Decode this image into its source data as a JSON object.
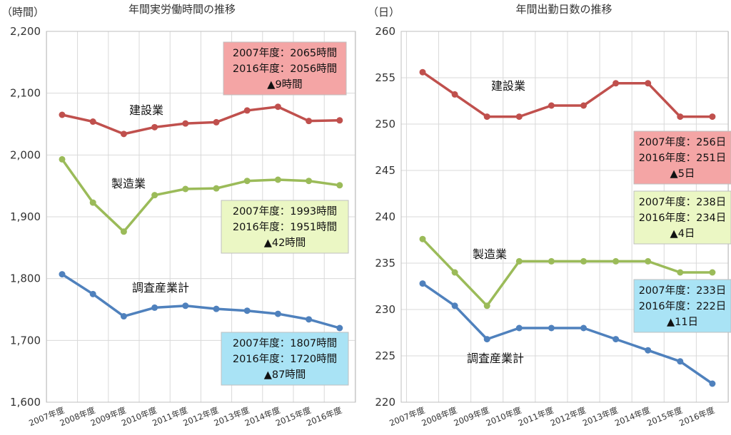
{
  "chart_data": [
    {
      "type": "line",
      "title": "年間実労働時間の推移",
      "unit": "（時間）",
      "ylim": [
        1600,
        2200
      ],
      "yticks": [
        1600,
        1700,
        1800,
        1900,
        2000,
        2100,
        2200
      ],
      "ytick_labels": [
        "1,600",
        "1,700",
        "1,800",
        "1,900",
        "2,000",
        "2,100",
        "2,200"
      ],
      "categories": [
        "2007年度",
        "2008年度",
        "2009年度",
        "2010年度",
        "2011年度",
        "2012年度",
        "2013年度",
        "2014年度",
        "2015年度",
        "2016年度"
      ],
      "series": [
        {
          "name": "建設業",
          "color": "#c0504d",
          "values": [
            2065,
            2054,
            2034,
            2045,
            2051,
            2053,
            2072,
            2078,
            2055,
            2056
          ]
        },
        {
          "name": "製造業",
          "color": "#9bbb59",
          "values": [
            1993,
            1923,
            1876,
            1935,
            1945,
            1946,
            1958,
            1960,
            1958,
            1951
          ]
        },
        {
          "name": "調査産業計",
          "color": "#4f81bd",
          "values": [
            1807,
            1775,
            1739,
            1753,
            1756,
            1751,
            1748,
            1743,
            1734,
            1720
          ]
        }
      ],
      "annotations": [
        {
          "series": "建設業",
          "fill": "#f4a5a5",
          "lines": [
            "2007年度：2065時間",
            "2016年度：2056時間",
            "▲9時間"
          ]
        },
        {
          "series": "製造業",
          "fill": "#ebf7c4",
          "lines": [
            "2007年度：1993時間",
            "2016年度：1951時間",
            "▲42時間"
          ]
        },
        {
          "series": "調査産業計",
          "fill": "#a9e3f5",
          "lines": [
            "2007年度：1807時間",
            "2016年度：1720時間",
            "▲87時間"
          ]
        }
      ]
    },
    {
      "type": "line",
      "title": "年間出勤日数の推移",
      "unit": "（日）",
      "ylim": [
        220,
        260
      ],
      "yticks": [
        220,
        225,
        230,
        235,
        240,
        245,
        250,
        255,
        260
      ],
      "ytick_labels": [
        "220",
        "225",
        "230",
        "235",
        "240",
        "245",
        "250",
        "255",
        "260"
      ],
      "categories": [
        "2007年度",
        "2008年度",
        "2009年度",
        "2010年度",
        "2011年度",
        "2012年度",
        "2013年度",
        "2014年度",
        "2015年度",
        "2016年度"
      ],
      "series": [
        {
          "name": "建設業",
          "color": "#c0504d",
          "values": [
            255.6,
            253.2,
            250.8,
            250.8,
            252.0,
            252.0,
            254.4,
            254.4,
            250.8,
            250.8
          ]
        },
        {
          "name": "製造業",
          "color": "#9bbb59",
          "values": [
            237.6,
            234.0,
            230.4,
            235.2,
            235.2,
            235.2,
            235.2,
            235.2,
            234.0,
            234.0
          ]
        },
        {
          "name": "調査産業計",
          "color": "#4f81bd",
          "values": [
            232.8,
            230.4,
            226.8,
            228.0,
            228.0,
            228.0,
            226.8,
            225.6,
            224.4,
            222.0
          ]
        }
      ],
      "annotations": [
        {
          "series": "建設業",
          "fill": "#f4a5a5",
          "lines": [
            "2007年度：256日",
            "2016年度：251日",
            "▲5日"
          ]
        },
        {
          "series": "製造業",
          "fill": "#ebf7c4",
          "lines": [
            "2007年度：238日",
            "2016年度：234日",
            "▲4日"
          ]
        },
        {
          "series": "調査産業計",
          "fill": "#a9e3f5",
          "lines": [
            "2007年度：233日",
            "2016年度：222日",
            "▲11日"
          ]
        }
      ]
    }
  ]
}
